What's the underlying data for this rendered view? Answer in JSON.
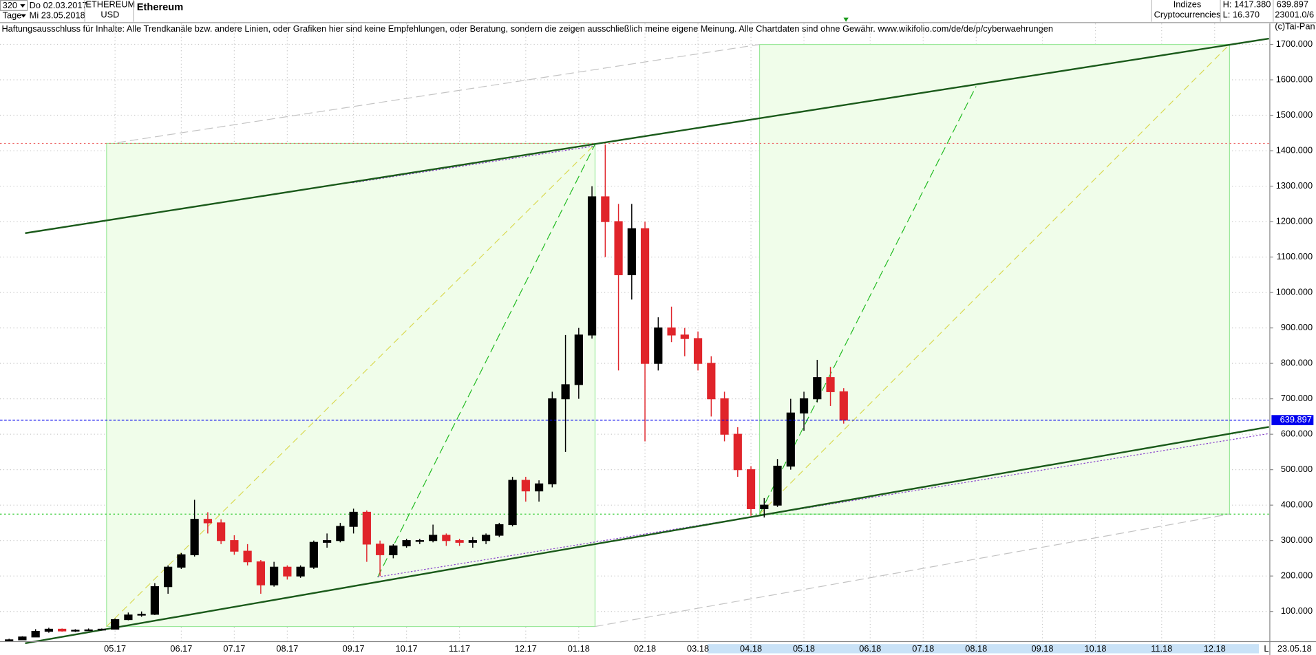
{
  "header": {
    "period": "320",
    "from_date": "Do 02.03.2017",
    "unit": "Tage",
    "to_date": "Mi 23.05.2018",
    "symbol": "ETHEREUM",
    "currency": "USD",
    "name": "Ethereum",
    "group": "Indizes",
    "subgroup": "Cryptocurrencies",
    "high": "H: 1417.380",
    "low": "L: 16.370",
    "last": "639.897",
    "info": "23001.0/6",
    "copyright": "(c)Tai-Pan",
    "disclaimer": "Haftungsausschluss für Inhalte: Alle Trendkanäle bzw. andere Linien, oder Grafiken hier sind keine Empfehlungen, oder Beratung, sondern die zeigen ausschließlich meine eigene Meinung. Alle Chartdaten sind ohne Gewähr.  www.wikifolio.com/de/de/p/cyberwaehrungen",
    "scroll_mark": "L",
    "end_date": "23.05.18"
  },
  "chart_data": {
    "type": "candlestick",
    "title": "Ethereum",
    "categories": [
      null,
      null,
      null,
      null,
      null,
      null,
      null,
      null,
      "05.17",
      null,
      null,
      null,
      null,
      "06.17",
      null,
      null,
      null,
      "07.17",
      null,
      null,
      null,
      "08.17",
      null,
      null,
      null,
      null,
      "09.17",
      null,
      null,
      null,
      "10.17",
      null,
      null,
      null,
      "11.17",
      null,
      null,
      null,
      null,
      "12.17",
      null,
      null,
      null,
      "01.18",
      null,
      null,
      null,
      null,
      "02.18",
      null,
      null,
      null,
      "03.18",
      null,
      null,
      null,
      "04.18",
      null,
      null,
      null,
      "05.18",
      null,
      null,
      null,
      null,
      "06.18",
      null,
      null,
      null,
      "07.18",
      null,
      null,
      null,
      "08.18",
      null,
      null,
      null,
      null,
      "09.18",
      null,
      null,
      null,
      "10.18",
      null,
      null,
      null,
      null,
      "11.18",
      null,
      null,
      null,
      "12.18",
      null,
      null,
      null
    ],
    "open": [
      17,
      20,
      28,
      44,
      50,
      45,
      47,
      48,
      50,
      77,
      90,
      92,
      170,
      225,
      260,
      360,
      350,
      300,
      270,
      240,
      175,
      225,
      200,
      225,
      295,
      300,
      340,
      380,
      290,
      260,
      285,
      300,
      300,
      315,
      300,
      295,
      300,
      315,
      345,
      470,
      440,
      460,
      700,
      740,
      880,
      1270,
      1200,
      1050,
      1180,
      800,
      900,
      880,
      870,
      800,
      700,
      600,
      500,
      390,
      400,
      510,
      660,
      700,
      760,
      720,
      null,
      null,
      null,
      null,
      null,
      null,
      null,
      null,
      null,
      null,
      null,
      null,
      null,
      null,
      null,
      null,
      null,
      null,
      null,
      null,
      null,
      null,
      null,
      null,
      null,
      null,
      null,
      null,
      null,
      null,
      null
    ],
    "high": [
      23,
      30,
      50,
      54,
      52,
      50,
      52,
      52,
      80,
      97,
      100,
      180,
      230,
      265,
      415,
      380,
      360,
      315,
      290,
      245,
      240,
      230,
      230,
      300,
      320,
      350,
      390,
      385,
      300,
      290,
      305,
      305,
      345,
      320,
      305,
      310,
      320,
      350,
      480,
      480,
      470,
      720,
      880,
      900,
      1300,
      1417.38,
      1250,
      1250,
      1200,
      930,
      960,
      900,
      890,
      820,
      720,
      620,
      510,
      420,
      530,
      700,
      720,
      810,
      790,
      730,
      null,
      null,
      null,
      null,
      null,
      null,
      null,
      null,
      null,
      null,
      null,
      null,
      null,
      null,
      null,
      null,
      null,
      null,
      null,
      null,
      null,
      null,
      null,
      null,
      null,
      null,
      null,
      null,
      null,
      null,
      null
    ],
    "low": [
      16.37,
      19,
      28,
      40,
      43,
      42,
      45,
      46,
      49,
      75,
      85,
      90,
      150,
      220,
      255,
      320,
      290,
      260,
      230,
      150,
      170,
      190,
      195,
      220,
      280,
      295,
      320,
      240,
      200,
      250,
      280,
      290,
      295,
      285,
      285,
      280,
      290,
      310,
      340,
      410,
      410,
      450,
      550,
      700,
      870,
      1100,
      780,
      980,
      580,
      780,
      860,
      820,
      780,
      650,
      580,
      480,
      370,
      365,
      395,
      500,
      610,
      690,
      680,
      630,
      null,
      null,
      null,
      null,
      null,
      null,
      null,
      null,
      null,
      null,
      null,
      null,
      null,
      null,
      null,
      null,
      null,
      null,
      null,
      null,
      null,
      null,
      null,
      null,
      null,
      null,
      null,
      null,
      null,
      null,
      null
    ],
    "close": [
      20,
      28,
      44,
      50,
      45,
      47,
      48,
      50,
      77,
      90,
      92,
      170,
      225,
      260,
      360,
      350,
      300,
      270,
      240,
      175,
      225,
      200,
      225,
      295,
      300,
      340,
      380,
      290,
      260,
      285,
      300,
      300,
      315,
      300,
      295,
      300,
      315,
      345,
      470,
      440,
      460,
      700,
      740,
      880,
      1270,
      1200,
      1050,
      1180,
      800,
      900,
      880,
      870,
      800,
      700,
      600,
      500,
      390,
      400,
      510,
      660,
      700,
      760,
      720,
      639.897,
      null,
      null,
      null,
      null,
      null,
      null,
      null,
      null,
      null,
      null,
      null,
      null,
      null,
      null,
      null,
      null,
      null,
      null,
      null,
      null,
      null,
      null,
      null,
      null,
      null,
      null,
      null,
      null,
      null,
      null,
      null
    ],
    "up_color": "#000000",
    "down_color": "#e0242a",
    "ylim": [
      15,
      1759
    ],
    "yticks": [
      {
        "value": 100,
        "label": "100.000"
      },
      {
        "value": 200,
        "label": "200.000"
      },
      {
        "value": 300,
        "label": "300.000"
      },
      {
        "value": 400,
        "label": "400.000"
      },
      {
        "value": 500,
        "label": "500.000"
      },
      {
        "value": 600,
        "label": "600.000"
      },
      {
        "value": 700,
        "label": "700.000"
      },
      {
        "value": 800,
        "label": "800.000"
      },
      {
        "value": 900,
        "label": "900.000"
      },
      {
        "value": 1000,
        "label": "1000.000"
      },
      {
        "value": 1100,
        "label": "1100.000"
      },
      {
        "value": 1200,
        "label": "1200.000"
      },
      {
        "value": 1300,
        "label": "1300.000"
      },
      {
        "value": 1400,
        "label": "1400.000"
      },
      {
        "value": 1500,
        "label": "1500.000"
      },
      {
        "value": 1600,
        "label": "1600.000"
      },
      {
        "value": 1700,
        "label": "1700.000"
      }
    ],
    "last_price": {
      "value": 639.897,
      "label": "639.897",
      "color": "#0000ee"
    },
    "grid": true
  }
}
